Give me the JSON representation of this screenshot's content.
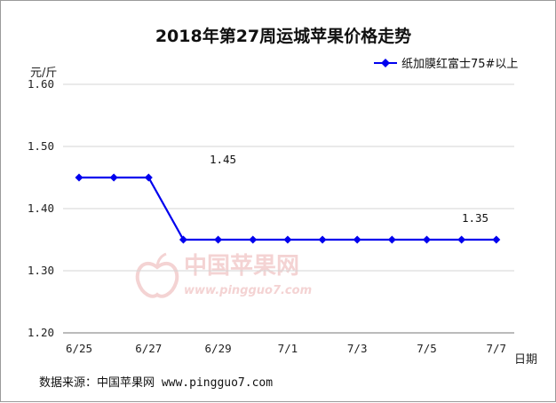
{
  "chart_data": {
    "type": "line",
    "title": "2018年第27周运城苹果价格走势",
    "ylabel": "元/斤",
    "xlabel": "日期",
    "ylim": [
      1.2,
      1.6
    ],
    "yticks": [
      "1.60",
      "1.50",
      "1.40",
      "1.30",
      "1.20"
    ],
    "ytick_values": [
      1.6,
      1.5,
      1.4,
      1.3,
      1.2
    ],
    "x": [
      "6/25",
      "6/26",
      "6/27",
      "6/28",
      "6/29",
      "6/30",
      "7/1",
      "7/2",
      "7/3",
      "7/4",
      "7/5",
      "7/6",
      "7/7"
    ],
    "xtick_labels": [
      "6/25",
      "6/27",
      "6/29",
      "7/1",
      "7/3",
      "7/5",
      "7/7"
    ],
    "grid": "horizontal",
    "legend_position": "top-right",
    "series": [
      {
        "name": "纸加膜红富士75#以上",
        "color": "#0000ee",
        "marker": "diamond",
        "values": [
          1.45,
          1.45,
          1.45,
          1.35,
          1.35,
          1.35,
          1.35,
          1.35,
          1.35,
          1.35,
          1.35,
          1.35,
          1.35
        ]
      }
    ],
    "annotations": [
      "1.45",
      "1.35"
    ]
  },
  "source": "数据来源：中国苹果网 www.pingguo7.com",
  "watermark": {
    "name": "中国苹果网",
    "url": "www.pingguo7.com",
    "color": "#f4d3d3"
  }
}
